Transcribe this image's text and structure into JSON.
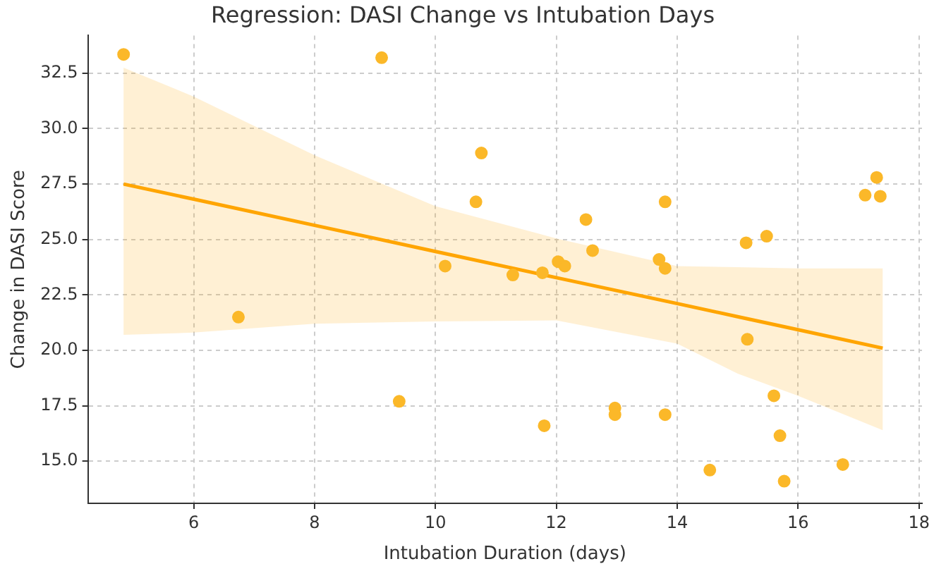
{
  "chart_data": {
    "type": "scatter",
    "title": "Regression: DASI Change vs Intubation Days",
    "xlabel": "Intubation Duration (days)",
    "ylabel": "Change in DASI Score",
    "xlim": [
      4.25,
      18.05
    ],
    "ylim": [
      13.1,
      34.2
    ],
    "xticks": [
      6,
      8,
      10,
      12,
      14,
      16,
      18
    ],
    "yticks": [
      {
        "value": 15,
        "label": "15.0"
      },
      {
        "value": 17.5,
        "label": "17.5"
      },
      {
        "value": 20,
        "label": "20.0"
      },
      {
        "value": 22.5,
        "label": "22.5"
      },
      {
        "value": 25,
        "label": "25.0"
      },
      {
        "value": 27.5,
        "label": "27.5"
      },
      {
        "value": 30,
        "label": "30.0"
      },
      {
        "value": 32.5,
        "label": "32.5"
      }
    ],
    "grid": true,
    "line_style": "solid",
    "series": [
      {
        "marker": "circle",
        "color": "#fbb829",
        "x": [
          4.84,
          9.11,
          6.74,
          9.4,
          10.16,
          10.67,
          10.76,
          11.28,
          11.77,
          11.8,
          12.03,
          12.14,
          12.49,
          12.6,
          12.97,
          12.97,
          13.7,
          13.8,
          13.8,
          13.8,
          14.54,
          15.14,
          15.48,
          15.16,
          15.6,
          15.7,
          15.77,
          16.74,
          17.11,
          17.3,
          17.36
        ],
        "values": [
          33.35,
          33.2,
          21.5,
          17.7,
          23.8,
          26.7,
          28.9,
          23.4,
          23.5,
          16.6,
          24.0,
          23.8,
          25.9,
          24.5,
          17.4,
          17.1,
          24.1,
          23.7,
          26.7,
          17.1,
          14.6,
          24.85,
          25.15,
          20.5,
          17.95,
          16.15,
          14.1,
          14.85,
          27.0,
          27.8,
          26.95
        ]
      },
      {
        "type": "line",
        "marker": "none",
        "color": "#ffa500",
        "x": [
          4.84,
          6,
          8,
          10,
          12,
          14,
          15,
          16,
          17.4
        ],
        "values": [
          27.5,
          26.82,
          25.64,
          24.46,
          23.28,
          22.11,
          21.52,
          20.93,
          20.1
        ],
        "lower": [
          20.7,
          20.8,
          21.2,
          21.3,
          21.35,
          20.3,
          18.95,
          17.95,
          16.4
        ],
        "upper": [
          32.75,
          31.45,
          28.8,
          26.5,
          25.05,
          23.8,
          23.75,
          23.7,
          23.7
        ]
      }
    ]
  }
}
